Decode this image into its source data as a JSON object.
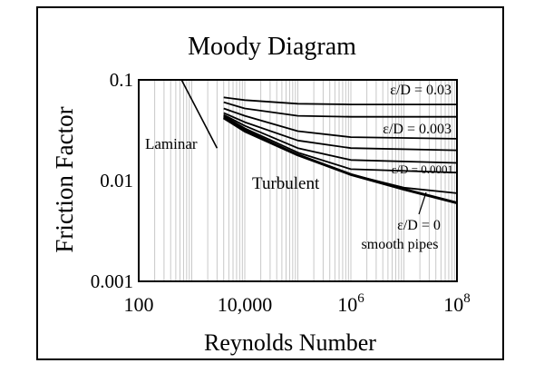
{
  "chart_data": {
    "type": "line",
    "title": "Moody Diagram",
    "xlabel": "Reynolds Number",
    "ylabel": "Friction Factor",
    "x_scale": "log",
    "y_scale": "log",
    "xlim": [
      100,
      100000000
    ],
    "ylim": [
      0.001,
      0.1
    ],
    "x_ticks": [
      {
        "value": 100,
        "label": "100"
      },
      {
        "value": 10000,
        "label": "10,000"
      },
      {
        "value": 1000000,
        "base": "10",
        "exp": "6"
      },
      {
        "value": 100000000,
        "base": "10",
        "exp": "8"
      }
    ],
    "y_ticks": [
      {
        "value": 0.1,
        "label": "0.1"
      },
      {
        "value": 0.01,
        "label": "0.01"
      },
      {
        "value": 0.001,
        "label": "0.001"
      }
    ],
    "grid": "vertical",
    "laminar": {
      "label": "Laminar",
      "points": [
        [
          640,
          0.1
        ],
        [
          3000,
          0.021
        ]
      ]
    },
    "series": [
      {
        "name": "ε/D = 0.03",
        "points": [
          [
            4000,
            0.067
          ],
          [
            10000,
            0.063
          ],
          [
            100000,
            0.058
          ],
          [
            1000000,
            0.057
          ],
          [
            100000000,
            0.057
          ]
        ]
      },
      {
        "points": [
          [
            4000,
            0.06
          ],
          [
            10000,
            0.052
          ],
          [
            100000,
            0.044
          ],
          [
            1000000,
            0.043
          ],
          [
            100000000,
            0.043
          ]
        ]
      },
      {
        "name": "ε/D = 0.003",
        "points": [
          [
            4000,
            0.052
          ],
          [
            10000,
            0.044
          ],
          [
            100000,
            0.031
          ],
          [
            1000000,
            0.027
          ],
          [
            100000000,
            0.026
          ]
        ]
      },
      {
        "points": [
          [
            4000,
            0.047
          ],
          [
            10000,
            0.038
          ],
          [
            100000,
            0.025
          ],
          [
            1000000,
            0.021
          ],
          [
            100000000,
            0.02
          ]
        ]
      },
      {
        "points": [
          [
            4000,
            0.045
          ],
          [
            10000,
            0.035
          ],
          [
            100000,
            0.021
          ],
          [
            1000000,
            0.016
          ],
          [
            100000000,
            0.015
          ]
        ]
      },
      {
        "name": "ε/D = 0.0001",
        "points": [
          [
            4000,
            0.044
          ],
          [
            10000,
            0.033
          ],
          [
            100000,
            0.019
          ],
          [
            1000000,
            0.013
          ],
          [
            100000000,
            0.012
          ]
        ]
      },
      {
        "points": [
          [
            4000,
            0.043
          ],
          [
            10000,
            0.032
          ],
          [
            100000,
            0.018
          ],
          [
            1000000,
            0.0115
          ],
          [
            10000000,
            0.0085
          ],
          [
            100000000,
            0.0075
          ]
        ]
      },
      {
        "name": "ε/D = 0",
        "points": [
          [
            4000,
            0.042
          ],
          [
            10000,
            0.031
          ],
          [
            100000,
            0.018
          ],
          [
            1000000,
            0.0115
          ],
          [
            10000000,
            0.0082
          ],
          [
            100000000,
            0.006
          ]
        ]
      }
    ],
    "annotations": [
      {
        "text": "Turbulent"
      },
      {
        "text": "smooth pipes"
      }
    ]
  }
}
